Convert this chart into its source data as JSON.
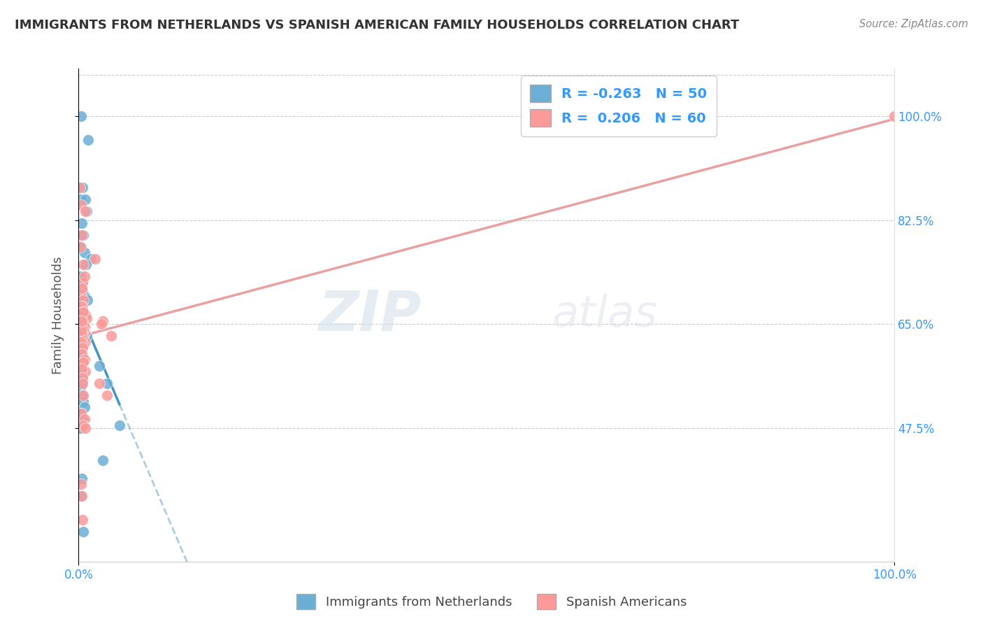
{
  "title": "IMMIGRANTS FROM NETHERLANDS VS SPANISH AMERICAN FAMILY HOUSEHOLDS CORRELATION CHART",
  "source_text": "Source: ZipAtlas.com",
  "ylabel": "Family Households",
  "y_tick_vals": [
    47.5,
    65.0,
    82.5,
    100.0
  ],
  "y_tick_labels": [
    "47.5%",
    "65.0%",
    "82.5%",
    "100.0%"
  ],
  "legend_label_blue": "Immigrants from Netherlands",
  "legend_label_pink": "Spanish Americans",
  "R_blue": -0.263,
  "N_blue": 50,
  "R_pink": 0.206,
  "N_pink": 60,
  "blue_color": "#6baed6",
  "pink_color": "#fb9a99",
  "blue_line_color": "#4393c3",
  "pink_line_color": "#e8a0a0",
  "watermark_zip": "ZIP",
  "watermark_atlas": "atlas",
  "blue_scatter_x": [
    0.3,
    1.2,
    0.5,
    0.2,
    0.8,
    1.0,
    0.4,
    0.6,
    0.3,
    0.7,
    1.5,
    0.9,
    0.2,
    0.4,
    0.3,
    0.5,
    0.6,
    0.8,
    1.1,
    0.3,
    0.4,
    0.2,
    0.5,
    0.7,
    0.6,
    0.3,
    0.4,
    0.2,
    0.5,
    0.8,
    1.0,
    0.3,
    0.6,
    0.4,
    3.5,
    0.2,
    0.5,
    0.3,
    0.4,
    0.6,
    0.7,
    2.5,
    0.3,
    0.5,
    5.0,
    0.2,
    3.0,
    0.4,
    0.3,
    0.6
  ],
  "blue_scatter_y": [
    100.0,
    96.0,
    88.0,
    86.0,
    86.0,
    84.0,
    82.0,
    80.0,
    78.0,
    77.0,
    76.0,
    75.0,
    73.0,
    72.0,
    71.0,
    70.5,
    70.0,
    69.5,
    69.0,
    68.5,
    68.0,
    67.5,
    67.0,
    66.5,
    66.0,
    65.5,
    65.0,
    64.5,
    64.0,
    63.5,
    63.0,
    62.5,
    62.0,
    60.0,
    55.0,
    57.0,
    55.5,
    54.5,
    53.0,
    52.0,
    51.0,
    58.0,
    50.0,
    49.0,
    48.0,
    47.5,
    42.0,
    39.0,
    36.0,
    30.0
  ],
  "pink_scatter_x": [
    0.1,
    0.3,
    0.2,
    0.8,
    2.0,
    0.4,
    0.6,
    0.5,
    0.3,
    0.7,
    0.4,
    0.6,
    0.5,
    0.3,
    0.8,
    1.0,
    0.4,
    0.6,
    0.5,
    0.3,
    0.7,
    0.2,
    0.4,
    0.8,
    0.6,
    0.3,
    0.5,
    0.4,
    0.2,
    0.7,
    0.6,
    0.5,
    0.3,
    0.4,
    0.8,
    0.6,
    2.5,
    0.3,
    0.5,
    0.4,
    0.7,
    0.6,
    3.0,
    0.4,
    0.5,
    0.3,
    0.7,
    0.6,
    0.8,
    0.3,
    0.4,
    0.5,
    4.0,
    3.5,
    0.6,
    0.3,
    0.4,
    2.8,
    0.5,
    100.0
  ],
  "pink_scatter_y": [
    88.0,
    85.0,
    78.0,
    84.0,
    76.0,
    80.0,
    75.0,
    72.0,
    70.0,
    73.0,
    71.0,
    69.0,
    68.0,
    67.5,
    66.5,
    66.0,
    65.5,
    65.0,
    64.5,
    64.0,
    63.5,
    63.0,
    62.5,
    62.0,
    61.5,
    68.0,
    67.0,
    65.5,
    65.0,
    64.5,
    64.0,
    63.0,
    65.5,
    63.5,
    57.0,
    53.0,
    55.0,
    62.0,
    61.0,
    60.0,
    59.0,
    58.5,
    65.5,
    57.5,
    56.0,
    50.0,
    49.0,
    48.0,
    47.5,
    38.0,
    36.0,
    32.0,
    63.0,
    53.0,
    67.0,
    64.0,
    65.5,
    65.0,
    55.0,
    100.0
  ]
}
